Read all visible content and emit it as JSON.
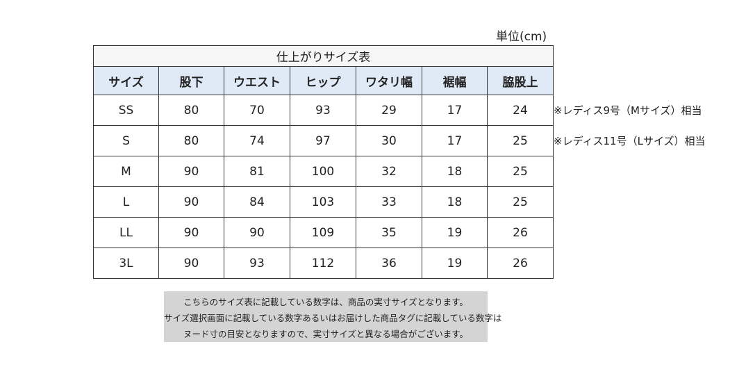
{
  "unit_label": "単位(cm)",
  "table": {
    "title": "仕上がりサイズ表",
    "headers": [
      "サイズ",
      "股下",
      "ウエスト",
      "ヒップ",
      "ワタリ幅",
      "裾幅",
      "脇股上"
    ],
    "rows": [
      [
        "SS",
        "80",
        "70",
        "93",
        "29",
        "17",
        "24"
      ],
      [
        "S",
        "80",
        "74",
        "97",
        "30",
        "17",
        "25"
      ],
      [
        "M",
        "90",
        "81",
        "100",
        "32",
        "18",
        "25"
      ],
      [
        "L",
        "90",
        "84",
        "103",
        "33",
        "18",
        "25"
      ],
      [
        "LL",
        "90",
        "90",
        "109",
        "35",
        "19",
        "26"
      ],
      [
        "3L",
        "90",
        "93",
        "112",
        "36",
        "19",
        "26"
      ]
    ]
  },
  "row_notes": [
    "※レディス9号（Mサイズ）相当",
    "※レディス11号（Lサイズ）相当"
  ],
  "notice_lines": [
    "こちらのサイズ表に記載している数字は、商品の実寸サイズとなります。",
    "サイズ選択画面に記載している数字あるいはお届けした商品タグに記載している数字は",
    "ヌード寸の目安となりますので、実寸サイズと異なる場合がございます。"
  ]
}
